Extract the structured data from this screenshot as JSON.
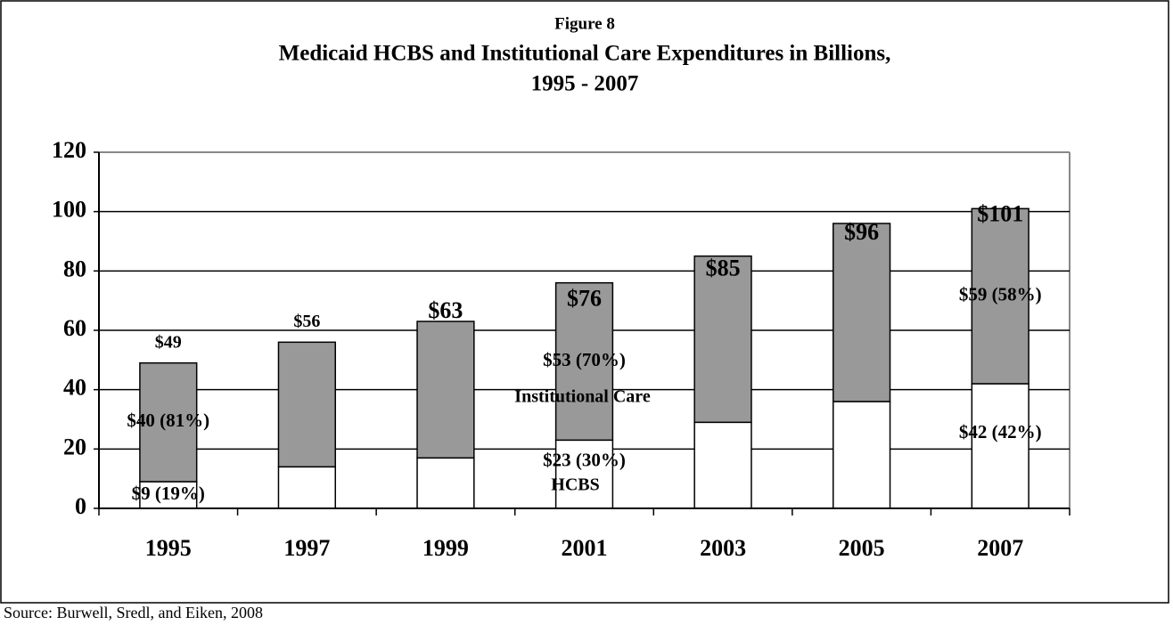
{
  "chart_data": {
    "type": "stacked_bar",
    "figure_label": "Figure 8",
    "title": "Medicaid HCBS and Institutional Care Expenditures in Billions,",
    "subtitle": "1995 - 2007",
    "categories": [
      "1995",
      "1997",
      "1999",
      "2001",
      "2003",
      "2005",
      "2007"
    ],
    "series": [
      {
        "name": "HCBS",
        "color": "#ffffff",
        "values": [
          9,
          14,
          17,
          23,
          29,
          36,
          42
        ],
        "value_labels": [
          "$9 (19%)",
          null,
          null,
          "$23 (30%)",
          null,
          null,
          "$42 (42%)"
        ]
      },
      {
        "name": "Institutional Care",
        "color": "#999999",
        "values": [
          40,
          42,
          46,
          53,
          56,
          60,
          59
        ],
        "value_labels": [
          "$40 (81%)",
          null,
          null,
          "$53 (70%)",
          null,
          null,
          "$59 (58%)"
        ]
      }
    ],
    "totals": [
      49,
      56,
      63,
      76,
      85,
      96,
      101
    ],
    "total_labels": [
      "$49",
      "$56",
      "$63",
      "$76",
      "$85",
      "$96",
      "$101"
    ],
    "ylim": [
      0,
      120
    ],
    "yticks": [
      0,
      20,
      40,
      60,
      80,
      100,
      120
    ],
    "grid": true,
    "source": "Source: Burwell, Sredl, and Eiken, 2008"
  }
}
